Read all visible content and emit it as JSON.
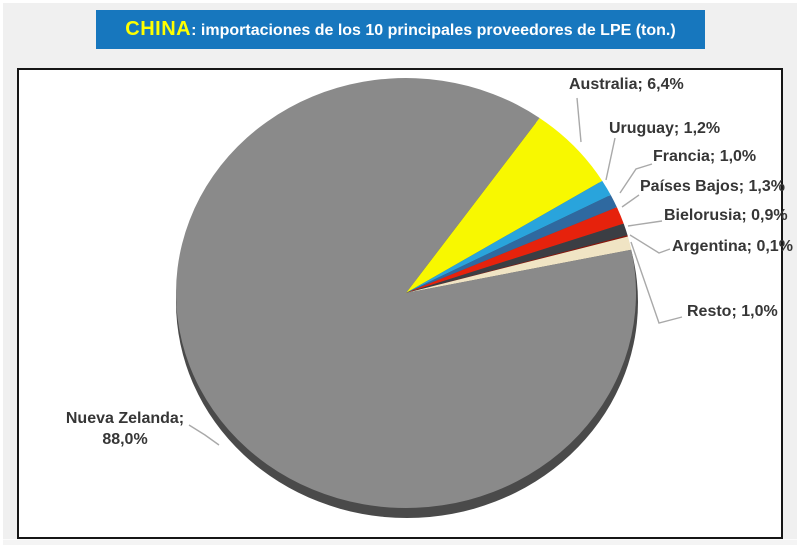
{
  "title": {
    "highlight": "CHINA",
    "rest": ": importaciones de los 10 principales proveedores de LPE (ton.)"
  },
  "chart_data": {
    "type": "pie",
    "title": "CHINA: importaciones de los 10 principales proveedores de LPE (ton.)",
    "unit": "% share of imports (ton.)",
    "direction": "clockwise",
    "start_angle_deg": 35.5,
    "legend_position": "outside-data-labels",
    "slices": [
      {
        "name": "Australia",
        "value": 6.4,
        "label": "Australia; 6,4%",
        "color": "#f8f800"
      },
      {
        "name": "Uruguay",
        "value": 1.2,
        "label": "Uruguay; 1,2%",
        "color": "#29a4dc"
      },
      {
        "name": "Francia",
        "value": 1.0,
        "label": "Francia; 1,0%",
        "color": "#2f69a0"
      },
      {
        "name": "Países Bajos",
        "value": 1.3,
        "label": "Países Bajos; 1,3%",
        "color": "#e6220c"
      },
      {
        "name": "Bielorusia",
        "value": 0.9,
        "label": "Bielorusia; 0,9%",
        "color": "#3b3e44"
      },
      {
        "name": "Argentina",
        "value": 0.1,
        "label": "Argentina; 0,1%",
        "color": "#8c140a"
      },
      {
        "name": "Resto",
        "value": 1.0,
        "label": "Resto; 1,0%",
        "color": "#f0e4c4"
      },
      {
        "name": "Nueva Zelanda",
        "value": 88.0,
        "label": "Nueva Zelanda; 88,0%",
        "label_line1": "Nueva Zelanda;",
        "label_line2": "88,0%",
        "color": "#8a8a8a"
      }
    ],
    "shadow_color": "#4a4a4a",
    "callout_color": "#a9a9a9",
    "label_text_color": "#363636"
  }
}
